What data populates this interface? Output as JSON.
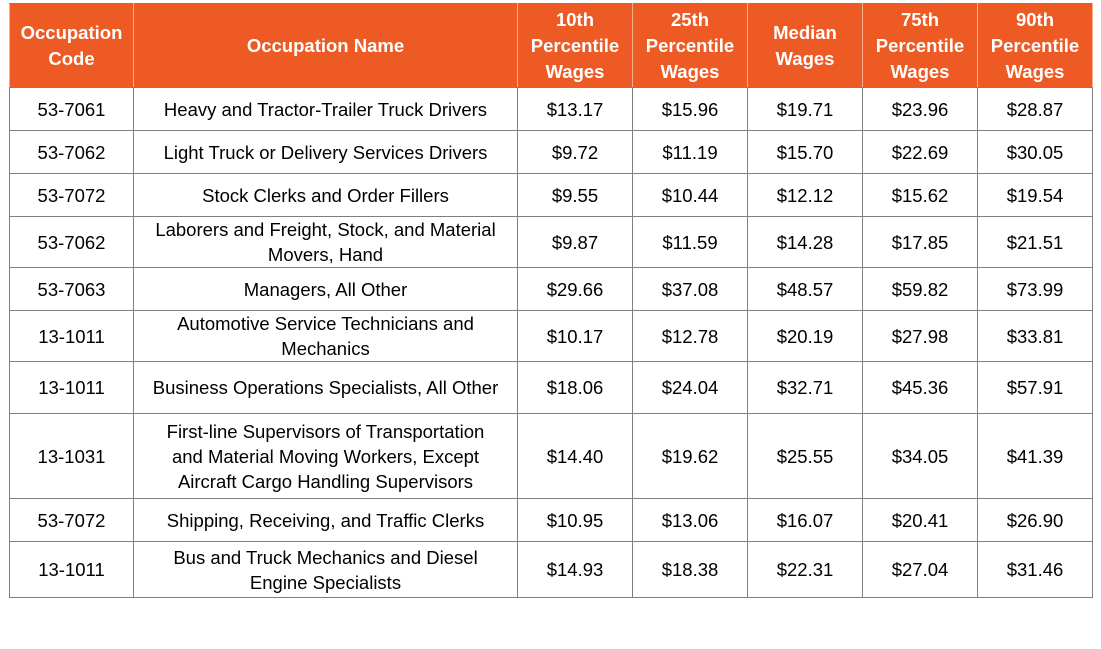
{
  "chart_data": {
    "type": "table",
    "columns": [
      {
        "key": "code",
        "lines": [
          "Occupation",
          "Code"
        ]
      },
      {
        "key": "name",
        "lines": [
          "Occupation Name"
        ]
      },
      {
        "key": "p10",
        "lines": [
          "10th",
          "Percentile",
          "Wages"
        ]
      },
      {
        "key": "p25",
        "lines": [
          "25th",
          "Percentile",
          "Wages"
        ]
      },
      {
        "key": "median",
        "lines": [
          "Median",
          "Wages"
        ]
      },
      {
        "key": "p75",
        "lines": [
          "75th",
          "Percentile",
          "Wages"
        ]
      },
      {
        "key": "p90",
        "lines": [
          "90th",
          "Percentile",
          "Wages"
        ]
      }
    ],
    "rows": [
      {
        "code": "53-7061",
        "name_lines": [
          "Heavy and Tractor-Trailer Truck Drivers"
        ],
        "p10": "$13.17",
        "p25": "$15.96",
        "median": "$19.71",
        "p75": "$23.96",
        "p90": "$28.87"
      },
      {
        "code": "53-7062",
        "name_lines": [
          "Light Truck or Delivery Services Drivers"
        ],
        "p10": "$9.72",
        "p25": "$11.19",
        "median": "$15.70",
        "p75": "$22.69",
        "p90": "$30.05"
      },
      {
        "code": "53-7072",
        "name_lines": [
          "Stock Clerks and Order Fillers"
        ],
        "p10": "$9.55",
        "p25": "$10.44",
        "median": "$12.12",
        "p75": "$15.62",
        "p90": "$19.54"
      },
      {
        "code": "53-7062",
        "name_lines": [
          "Laborers and Freight, Stock, and Material",
          "Movers, Hand"
        ],
        "p10": "$9.87",
        "p25": "$11.59",
        "median": "$14.28",
        "p75": "$17.85",
        "p90": "$21.51"
      },
      {
        "code": "53-7063",
        "name_lines": [
          "Managers, All Other"
        ],
        "p10": "$29.66",
        "p25": "$37.08",
        "median": "$48.57",
        "p75": "$59.82",
        "p90": "$73.99"
      },
      {
        "code": "13-1011",
        "name_lines": [
          "Automotive Service Technicians and",
          "Mechanics"
        ],
        "p10": "$10.17",
        "p25": "$12.78",
        "median": "$20.19",
        "p75": "$27.98",
        "p90": "$33.81"
      },
      {
        "code": "13-1011",
        "name_lines": [
          "Business Operations Specialists, All Other"
        ],
        "p10": "$18.06",
        "p25": "$24.04",
        "median": "$32.71",
        "p75": "$45.36",
        "p90": "$57.91"
      },
      {
        "code": "13-1031",
        "name_lines": [
          "First-line Supervisors of Transportation",
          "and Material Moving Workers, Except",
          "Aircraft Cargo Handling Supervisors"
        ],
        "p10": "$14.40",
        "p25": "$19.62",
        "median": "$25.55",
        "p75": "$34.05",
        "p90": "$41.39"
      },
      {
        "code": "53-7072",
        "name_lines": [
          "Shipping, Receiving, and Traffic Clerks"
        ],
        "p10": "$10.95",
        "p25": "$13.06",
        "median": "$16.07",
        "p75": "$20.41",
        "p90": "$26.90"
      },
      {
        "code": "13-1011",
        "name_lines": [
          "Bus and Truck Mechanics and Diesel",
          "Engine Specialists"
        ],
        "p10": "$14.93",
        "p25": "$18.38",
        "median": "$22.31",
        "p75": "$27.04",
        "p90": "$31.46"
      }
    ],
    "header_color": "#ee5a24",
    "header_text_color": "#ffffff"
  }
}
